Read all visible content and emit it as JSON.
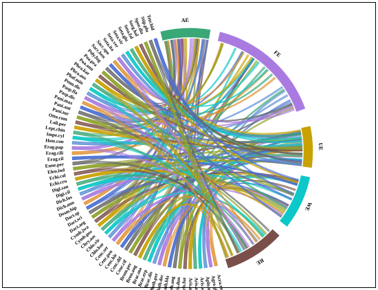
{
  "groups": [
    {
      "label": "AE",
      "color": "#3aa776"
    },
    {
      "label": "FE",
      "color": "#a97be0"
    },
    {
      "label": "UE",
      "color": "#c9a100"
    },
    {
      "label": "WE",
      "color": "#0cc8c8"
    },
    {
      "label": "RE",
      "color": "#7a4f4a"
    }
  ],
  "species": [
    "Acra.rac",
    "Agro.gig",
    "Aplu.mut",
    "Aris.adn",
    "Aris.ads",
    "Aris.mut",
    "Aris.fut",
    "Aris.dun",
    "Both.ang",
    "Both.bla",
    "Both.dec",
    "Both.per",
    "Brac.dis",
    "Brac.erp",
    "Brac.mo",
    "Bron.ang",
    "Brom.pec",
    "Cenc.cif",
    "Cenc.dif",
    "Cenc.hir",
    "Cenc.pen",
    "Cenc.set",
    "Chlo.bar",
    "Chlo.vir",
    "Chry.aac",
    "Cymb.pos",
    "Cymb.jwa",
    "Dact.aeg",
    "Dact.sci",
    "Dact.sp",
    "Desm.bip",
    "Dich.ann",
    "Dich.fos",
    "Digi.cil",
    "Digi.san",
    "Echi.cru",
    "Echi.col",
    "Eleu.ind",
    "Enne.per",
    "Erag.cil",
    "Erag.cili",
    "Erag.pap",
    "Hete.con",
    "Impe.cyl",
    "Lept.chin",
    "Loli.per",
    "Otto.com",
    "Pani.tur",
    "Pani.ant",
    "Pani.max",
    "Pasp.dis",
    "Pasp.fla",
    "Penn.dis",
    "Phaf.min",
    "Phra.aus",
    "Phra.kar",
    "Poa.ann",
    "Poa.pra",
    "Poly.fug",
    "Sacc.ben",
    "Sacc.spo",
    "Seta.ita",
    "Seta.ver",
    "Seta.vir",
    "Seta.glu",
    "Seta.fal",
    "Sorg.hal",
    "Spor.dia",
    "Stip.plu",
    "Tetr.bid"
  ],
  "chart_data": {
    "type": "chord",
    "groups": [
      "AE",
      "FE",
      "UE",
      "WE",
      "RE"
    ],
    "group_colors": [
      "#3aa776",
      "#a97be0",
      "#c9a100",
      "#0cc8c8",
      "#7a4f4a"
    ],
    "species_count": 70
  }
}
